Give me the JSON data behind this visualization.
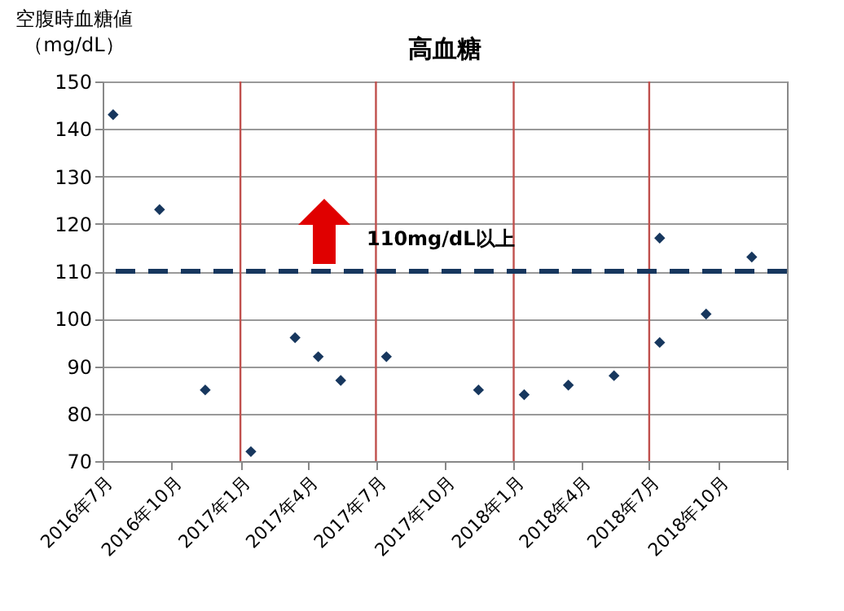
{
  "chart_data": {
    "type": "scatter",
    "title": "高血糖",
    "ylabel": "空腹時血糖値（mg/dL）",
    "x": [
      "2016-07-15",
      "2016-09-15",
      "2016-11-15",
      "2017-01-15",
      "2017-03-15",
      "2017-04-15",
      "2017-05-15",
      "2017-07-15",
      "2017-11-15",
      "2018-01-15",
      "2018-03-15",
      "2018-05-15",
      "2018-07-15",
      "2018-07-15",
      "2018-09-15",
      "2018-11-15"
    ],
    "series": [
      {
        "color": "#17375e",
        "values": [
          143,
          123,
          85,
          72,
          96,
          92,
          87,
          92,
          85,
          84,
          86,
          88,
          117,
          95,
          101,
          113
        ]
      }
    ],
    "xlim": [
      "2016-07-01",
      "2019-01-01"
    ],
    "xticks": [
      {
        "value": "2016-07-01",
        "label": "2016年7月"
      },
      {
        "value": "2016-10-01",
        "label": "2016年10月"
      },
      {
        "value": "2017-01-01",
        "label": "2017年1月"
      },
      {
        "value": "2017-04-01",
        "label": "2017年4月"
      },
      {
        "value": "2017-07-01",
        "label": "2017年7月"
      },
      {
        "value": "2017-10-01",
        "label": "2017年10月"
      },
      {
        "value": "2018-01-01",
        "label": "2018年1月"
      },
      {
        "value": "2018-04-01",
        "label": "2018年4月"
      },
      {
        "value": "2018-07-01",
        "label": "2018年7月"
      },
      {
        "value": "2018-10-01",
        "label": "2018年10月"
      },
      {
        "value": "2019-01-01",
        "label": null
      }
    ],
    "ylim": [
      70,
      150
    ],
    "yticks": [
      70,
      80,
      90,
      100,
      110,
      120,
      130,
      140,
      150
    ],
    "ref_lines": [
      {
        "axis": "y",
        "value": 110,
        "label": "110mg/dL以上",
        "color": "#17375e",
        "line_style": "dashed"
      },
      {
        "axis": "x",
        "value": "2017-01-01",
        "color": "#c0504d"
      },
      {
        "axis": "x",
        "value": "2017-07-01",
        "color": "#c0504d"
      },
      {
        "axis": "x",
        "value": "2018-01-01",
        "color": "#c0504d"
      },
      {
        "axis": "x",
        "value": "2018-07-01",
        "color": "#c0504d"
      }
    ],
    "grid": "y",
    "legend": false,
    "marker": "diamond"
  }
}
